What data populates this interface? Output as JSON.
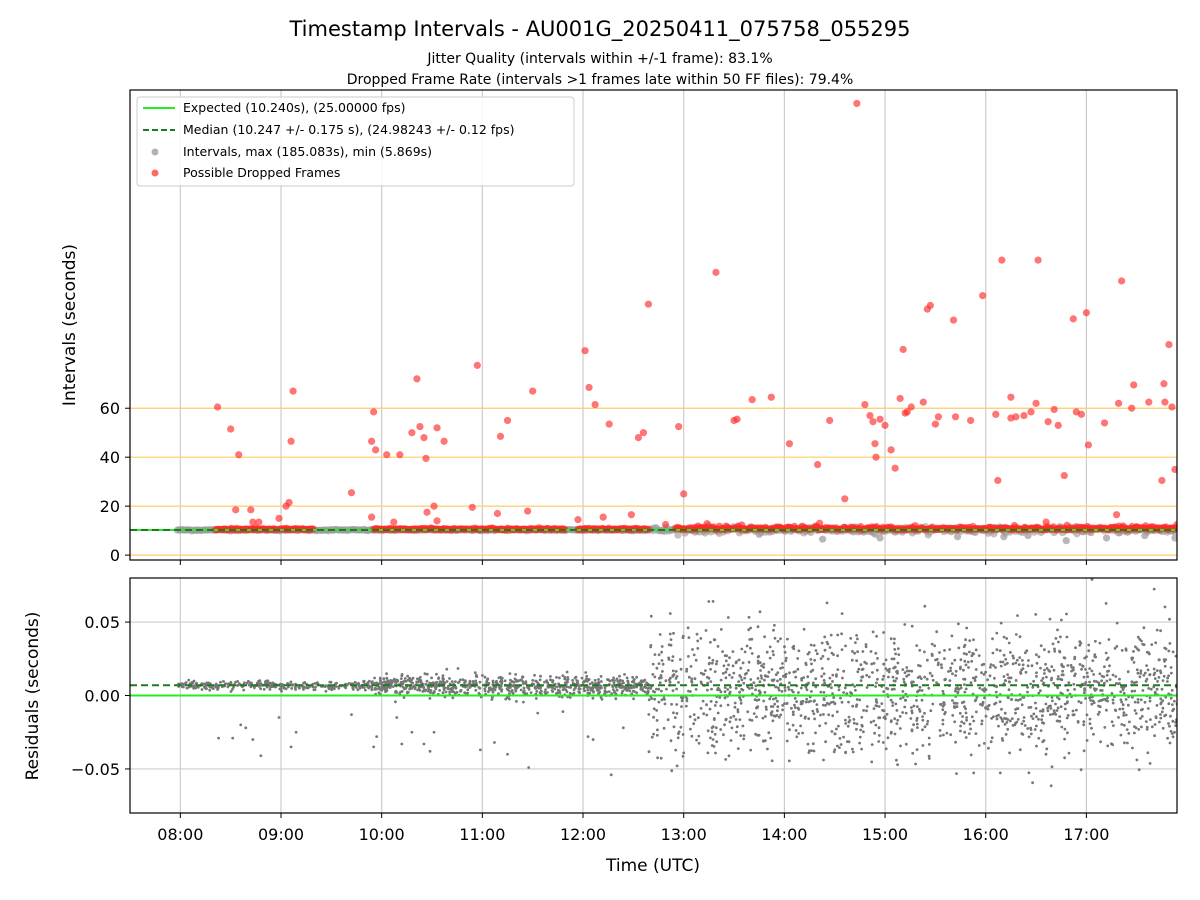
{
  "chart_data": [
    {
      "type": "scatter",
      "panel": "intervals",
      "title": "Timestamp Intervals - AU001G_20250411_075758_055295",
      "subtitle_lines": [
        "Jitter Quality (intervals within +/-1 frame): 83.1%",
        "Dropped Frame Rate (intervals >1 frames late within 50 FF files): 79.4%"
      ],
      "ylabel": "Intervals (seconds)",
      "xlabel": "",
      "xlim_hours": [
        7.5,
        17.9
      ],
      "ylim": [
        -2,
        190
      ],
      "yticks": [
        0,
        20,
        40,
        60
      ],
      "ytick_labels": [
        "0",
        "20",
        "40",
        "60"
      ],
      "reference_lines_y": [
        0,
        20,
        40,
        60
      ],
      "reference_line_color": "#ffcc66",
      "grid_x": true,
      "legend_position": "upper-left",
      "legend": [
        {
          "label": "Expected (10.240s), (25.00000 fps)",
          "kind": "solid-line",
          "color": "#22ee22"
        },
        {
          "label": "Median (10.247 +/- 0.175 s), (24.98243 +/- 0.12 fps)",
          "kind": "dashed-line",
          "color": "#1a7f1a"
        },
        {
          "label": "Intervals, max (185.083s), min (5.869s)",
          "kind": "marker",
          "color": "#999999"
        },
        {
          "label": "Possible Dropped Frames",
          "kind": "marker",
          "color": "#ff2a2a"
        }
      ],
      "expected_y": 10.24,
      "median_y": 10.247,
      "baseline_start_hours": 7.97,
      "baseline_end_hours": 17.9,
      "dense_dropped_segments_hours": [
        [
          8.35,
          8.95
        ],
        [
          8.98,
          9.32
        ],
        [
          9.92,
          10.85
        ],
        [
          10.88,
          11.82
        ],
        [
          11.95,
          12.65
        ],
        [
          12.92,
          17.9
        ]
      ],
      "dropped_frames": [
        [
          8.37,
          60.5
        ],
        [
          8.5,
          51.5
        ],
        [
          8.55,
          18.5
        ],
        [
          8.58,
          41.0
        ],
        [
          8.7,
          18.5
        ],
        [
          8.72,
          13.5
        ],
        [
          8.78,
          13.5
        ],
        [
          8.98,
          15.0
        ],
        [
          9.05,
          20.0
        ],
        [
          9.08,
          21.5
        ],
        [
          9.1,
          46.5
        ],
        [
          9.12,
          67.0
        ],
        [
          9.7,
          25.5
        ],
        [
          9.9,
          46.5
        ],
        [
          9.9,
          15.5
        ],
        [
          9.92,
          58.5
        ],
        [
          9.94,
          43.0
        ],
        [
          10.05,
          41.0
        ],
        [
          10.12,
          13.5
        ],
        [
          10.18,
          41.0
        ],
        [
          10.3,
          50.0
        ],
        [
          10.35,
          72.0
        ],
        [
          10.38,
          52.5
        ],
        [
          10.42,
          48.0
        ],
        [
          10.45,
          17.5
        ],
        [
          10.44,
          39.5
        ],
        [
          10.52,
          20.0
        ],
        [
          10.55,
          52.0
        ],
        [
          10.55,
          14.0
        ],
        [
          10.62,
          46.5
        ],
        [
          10.9,
          19.5
        ],
        [
          10.95,
          77.5
        ],
        [
          11.15,
          17.0
        ],
        [
          11.18,
          48.5
        ],
        [
          11.25,
          55.0
        ],
        [
          11.45,
          18.0
        ],
        [
          11.5,
          67.0
        ],
        [
          11.95,
          14.5
        ],
        [
          12.02,
          83.5
        ],
        [
          12.06,
          68.5
        ],
        [
          12.12,
          61.5
        ],
        [
          12.2,
          15.5
        ],
        [
          12.26,
          53.5
        ],
        [
          12.48,
          16.5
        ],
        [
          12.55,
          48.0
        ],
        [
          12.6,
          50.0
        ],
        [
          12.65,
          102.5
        ],
        [
          12.82,
          12.5
        ],
        [
          12.95,
          52.5
        ],
        [
          13.0,
          25.0
        ],
        [
          13.32,
          115.5
        ],
        [
          13.5,
          55.0
        ],
        [
          13.53,
          55.5
        ],
        [
          13.68,
          63.5
        ],
        [
          13.87,
          64.5
        ],
        [
          14.05,
          45.5
        ],
        [
          14.33,
          37.0
        ],
        [
          14.45,
          55.0
        ],
        [
          14.6,
          23.0
        ],
        [
          14.72,
          184.5
        ],
        [
          14.8,
          61.5
        ],
        [
          14.85,
          57.0
        ],
        [
          14.88,
          54.5
        ],
        [
          14.9,
          45.5
        ],
        [
          14.91,
          40.0
        ],
        [
          14.95,
          55.5
        ],
        [
          15.0,
          53.0
        ],
        [
          15.06,
          43.0
        ],
        [
          15.1,
          35.5
        ],
        [
          15.15,
          64.0
        ],
        [
          15.18,
          84.0
        ],
        [
          15.2,
          58.0
        ],
        [
          15.22,
          58.5
        ],
        [
          15.26,
          60.5
        ],
        [
          15.38,
          62.5
        ],
        [
          15.42,
          100.5
        ],
        [
          15.45,
          102.0
        ],
        [
          15.5,
          53.5
        ],
        [
          15.53,
          56.5
        ],
        [
          15.68,
          96.0
        ],
        [
          15.7,
          56.5
        ],
        [
          15.85,
          55.0
        ],
        [
          15.97,
          106.0
        ],
        [
          16.1,
          57.5
        ],
        [
          16.12,
          30.5
        ],
        [
          16.16,
          120.5
        ],
        [
          16.25,
          64.5
        ],
        [
          16.25,
          56.0
        ],
        [
          16.3,
          56.5
        ],
        [
          16.38,
          57.0
        ],
        [
          16.45,
          58.5
        ],
        [
          16.5,
          62.0
        ],
        [
          16.52,
          120.5
        ],
        [
          16.62,
          54.5
        ],
        [
          16.68,
          59.5
        ],
        [
          16.72,
          53.0
        ],
        [
          16.78,
          32.5
        ],
        [
          16.87,
          96.5
        ],
        [
          16.9,
          58.5
        ],
        [
          16.95,
          57.5
        ],
        [
          17.0,
          99.0
        ],
        [
          17.02,
          45.0
        ],
        [
          17.18,
          54.0
        ],
        [
          17.3,
          16.5
        ],
        [
          17.32,
          62.0
        ],
        [
          17.35,
          112.0
        ],
        [
          17.45,
          60.0
        ],
        [
          17.47,
          69.5
        ],
        [
          17.62,
          62.5
        ],
        [
          17.75,
          30.5
        ],
        [
          17.77,
          70.0
        ],
        [
          17.78,
          62.5
        ],
        [
          17.82,
          86.0
        ],
        [
          17.85,
          60.5
        ],
        [
          17.88,
          35.0
        ],
        [
          17.9,
          12.5
        ],
        [
          14.35,
          13.0
        ],
        [
          15.3,
          12.0
        ],
        [
          16.6,
          13.5
        ],
        [
          17.5,
          11.5
        ]
      ],
      "gray_outliers": [
        [
          13.25,
          12.0
        ],
        [
          14.38,
          6.5
        ],
        [
          14.95,
          7.0
        ],
        [
          15.72,
          7.5
        ],
        [
          16.18,
          7.5
        ],
        [
          16.8,
          5.9
        ],
        [
          17.2,
          7.0
        ],
        [
          17.58,
          8.0
        ],
        [
          17.88,
          7.0
        ],
        [
          13.75,
          8.5
        ],
        [
          16.42,
          8.0
        ]
      ]
    },
    {
      "type": "scatter",
      "panel": "residuals",
      "title": "",
      "xlabel": "Time (UTC)",
      "ylabel": "Residuals (seconds)",
      "xlim_hours": [
        7.5,
        17.9
      ],
      "ylim": [
        -0.08,
        0.08
      ],
      "yticks": [
        -0.05,
        0.0,
        0.05
      ],
      "ytick_labels": [
        "−0.05",
        "0.00",
        "0.05"
      ],
      "xticks_hours": [
        8,
        9,
        10,
        11,
        12,
        13,
        14,
        15,
        16,
        17
      ],
      "xtick_labels": [
        "08:00",
        "09:00",
        "10:00",
        "11:00",
        "12:00",
        "13:00",
        "14:00",
        "15:00",
        "16:00",
        "17:00"
      ],
      "grid": true,
      "expected_residual": 0.0,
      "median_residual": 0.007,
      "point_color": "#777777",
      "segments": [
        {
          "start": 7.97,
          "end": 8.95,
          "center": 0.007,
          "spread": 0.0015,
          "count": 150
        },
        {
          "start": 8.95,
          "end": 9.9,
          "center": 0.0065,
          "spread": 0.0015,
          "count": 130
        },
        {
          "start": 9.9,
          "end": 10.6,
          "center": 0.007,
          "spread": 0.003,
          "count": 200
        },
        {
          "start": 10.6,
          "end": 12.65,
          "center": 0.0065,
          "spread": 0.0035,
          "count": 520
        },
        {
          "start": 12.65,
          "end": 17.9,
          "center": 0.003,
          "spread": 0.021,
          "count": 1600
        }
      ],
      "outliers": [
        [
          8.38,
          -0.029
        ],
        [
          8.52,
          -0.029
        ],
        [
          8.6,
          -0.02
        ],
        [
          8.65,
          -0.022
        ],
        [
          8.8,
          -0.041
        ],
        [
          8.72,
          -0.03
        ],
        [
          8.98,
          -0.015
        ],
        [
          9.1,
          -0.035
        ],
        [
          9.15,
          -0.025
        ],
        [
          9.7,
          -0.013
        ],
        [
          9.92,
          -0.035
        ],
        [
          9.95,
          -0.028
        ],
        [
          10.2,
          -0.033
        ],
        [
          10.3,
          -0.025
        ],
        [
          10.42,
          -0.033
        ],
        [
          10.48,
          -0.038
        ],
        [
          10.52,
          -0.025
        ],
        [
          10.15,
          -0.015
        ],
        [
          10.98,
          -0.037
        ],
        [
          11.12,
          -0.032
        ],
        [
          11.25,
          -0.04
        ],
        [
          11.46,
          -0.049
        ],
        [
          11.55,
          -0.012
        ],
        [
          11.8,
          -0.011
        ],
        [
          12.05,
          -0.028
        ],
        [
          12.1,
          -0.03
        ],
        [
          12.28,
          -0.054
        ],
        [
          12.4,
          -0.022
        ]
      ]
    }
  ]
}
